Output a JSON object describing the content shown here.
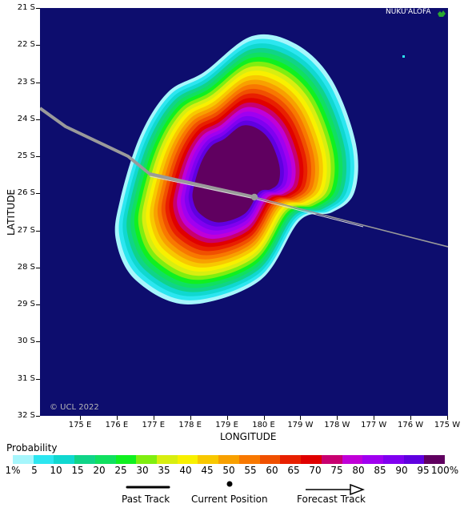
{
  "map": {
    "place_label": "NUKU'ALOFA",
    "copyright": "© UCL 2022",
    "background_color": "#0d0d6e",
    "track_color": "#9a9a9a",
    "y_axis_label": "LATITUDE",
    "x_axis_label": "LONGITUDE",
    "y_ticks": [
      "21 S",
      "22 S",
      "23 S",
      "24 S",
      "25 S",
      "26 S",
      "27 S",
      "28 S",
      "29 S",
      "30 S",
      "31 S",
      "32 S"
    ],
    "x_ticks": [
      "175 E",
      "176 E",
      "177 E",
      "178 E",
      "179 E",
      "180 E",
      "179 W",
      "178 W",
      "177 W",
      "176 W",
      "175 W"
    ],
    "probability_levels": [
      1,
      5,
      10,
      15,
      20,
      25,
      30,
      35,
      40,
      45,
      50,
      55,
      60,
      65,
      70,
      75,
      80,
      85,
      90,
      95
    ],
    "current_position": {
      "lat": "26.1 S",
      "lon": "179.8 E"
    }
  },
  "legend": {
    "title": "Probability",
    "labels": [
      "1%",
      "5",
      "10",
      "15",
      "20",
      "25",
      "30",
      "35",
      "40",
      "45",
      "50",
      "55",
      "60",
      "65",
      "70",
      "75",
      "80",
      "85",
      "90",
      "95",
      "100%"
    ],
    "colors": [
      "#a6f6fc",
      "#2ce6f0",
      "#10d8d0",
      "#10d488",
      "#10e060",
      "#10f020",
      "#80ee10",
      "#d8ee10",
      "#f8f000",
      "#f8c800",
      "#f8a000",
      "#f87800",
      "#f05000",
      "#e82000",
      "#e00000",
      "#c80070",
      "#c000d8",
      "#a000f0",
      "#8000f0",
      "#6000e0",
      "#600060"
    ],
    "past_track_label": "Past Track",
    "current_position_label": "Current Position",
    "forecast_track_label": "Forecast Track"
  }
}
